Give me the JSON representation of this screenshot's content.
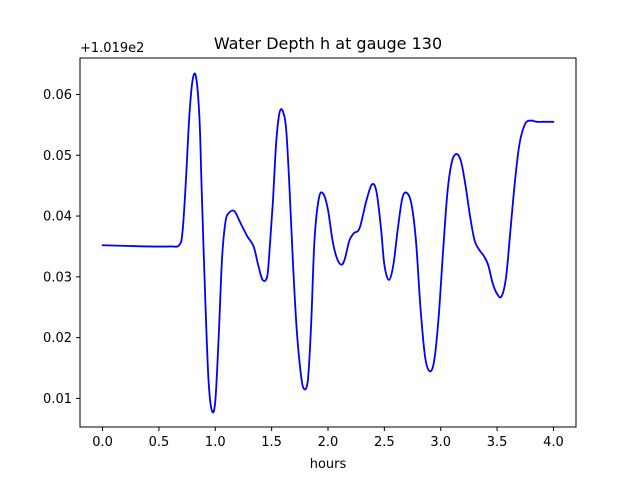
{
  "chart_data": {
    "type": "line",
    "title": "Water Depth h at gauge 130",
    "xlabel": "hours",
    "ylabel": "",
    "y_offset_label": "+1.019e2",
    "xlim": [
      -0.2,
      4.2
    ],
    "ylim": [
      0.0053,
      0.066
    ],
    "xticks": [
      0.0,
      0.5,
      1.0,
      1.5,
      2.0,
      2.5,
      3.0,
      3.5,
      4.0
    ],
    "xtick_labels": [
      "0.0",
      "0.5",
      "1.0",
      "1.5",
      "2.0",
      "2.5",
      "3.0",
      "3.5",
      "4.0"
    ],
    "yticks": [
      0.01,
      0.02,
      0.03,
      0.04,
      0.05,
      0.06
    ],
    "ytick_labels": [
      "0.01",
      "0.02",
      "0.03",
      "0.04",
      "0.05",
      "0.06"
    ],
    "grid": false,
    "line_color": "#0000ff",
    "series": [
      {
        "x": [
          0.0,
          0.2,
          0.4,
          0.6,
          0.68,
          0.71,
          0.74,
          0.77,
          0.8,
          0.83,
          0.86,
          0.88,
          0.91,
          0.94,
          0.97,
          1.0,
          1.03,
          1.06,
          1.09,
          1.12,
          1.17,
          1.22,
          1.28,
          1.34,
          1.38,
          1.42,
          1.46,
          1.48,
          1.51,
          1.54,
          1.57,
          1.6,
          1.63,
          1.66,
          1.69,
          1.72,
          1.75,
          1.78,
          1.82,
          1.85,
          1.88,
          1.92,
          1.96,
          2.0,
          2.04,
          2.08,
          2.12,
          2.15,
          2.19,
          2.23,
          2.28,
          2.34,
          2.39,
          2.43,
          2.47,
          2.5,
          2.54,
          2.58,
          2.62,
          2.66,
          2.7,
          2.74,
          2.78,
          2.82,
          2.86,
          2.9,
          2.94,
          2.98,
          3.02,
          3.06,
          3.1,
          3.14,
          3.18,
          3.22,
          3.26,
          3.3,
          3.34,
          3.38,
          3.42,
          3.46,
          3.5,
          3.54,
          3.58,
          3.62,
          3.66,
          3.7,
          3.75,
          3.8,
          3.85,
          3.9,
          3.95,
          3.98,
          4.0
        ],
        "y": [
          0.0352,
          0.0351,
          0.035,
          0.035,
          0.0352,
          0.0375,
          0.046,
          0.0565,
          0.0625,
          0.0628,
          0.056,
          0.044,
          0.027,
          0.013,
          0.008,
          0.0095,
          0.02,
          0.033,
          0.039,
          0.0405,
          0.0408,
          0.039,
          0.0368,
          0.035,
          0.032,
          0.0295,
          0.03,
          0.034,
          0.042,
          0.052,
          0.057,
          0.0572,
          0.054,
          0.044,
          0.032,
          0.022,
          0.0155,
          0.0118,
          0.0128,
          0.022,
          0.036,
          0.043,
          0.0436,
          0.041,
          0.036,
          0.033,
          0.032,
          0.033,
          0.036,
          0.0372,
          0.038,
          0.0425,
          0.0452,
          0.044,
          0.038,
          0.032,
          0.0295,
          0.032,
          0.038,
          0.043,
          0.0438,
          0.042,
          0.036,
          0.025,
          0.017,
          0.0145,
          0.016,
          0.023,
          0.034,
          0.044,
          0.049,
          0.0502,
          0.049,
          0.045,
          0.04,
          0.036,
          0.0345,
          0.0335,
          0.032,
          0.029,
          0.0272,
          0.0268,
          0.03,
          0.038,
          0.046,
          0.052,
          0.0552,
          0.0557,
          0.0555,
          0.0555,
          0.0555,
          0.0555,
          0.0555
        ]
      }
    ]
  }
}
